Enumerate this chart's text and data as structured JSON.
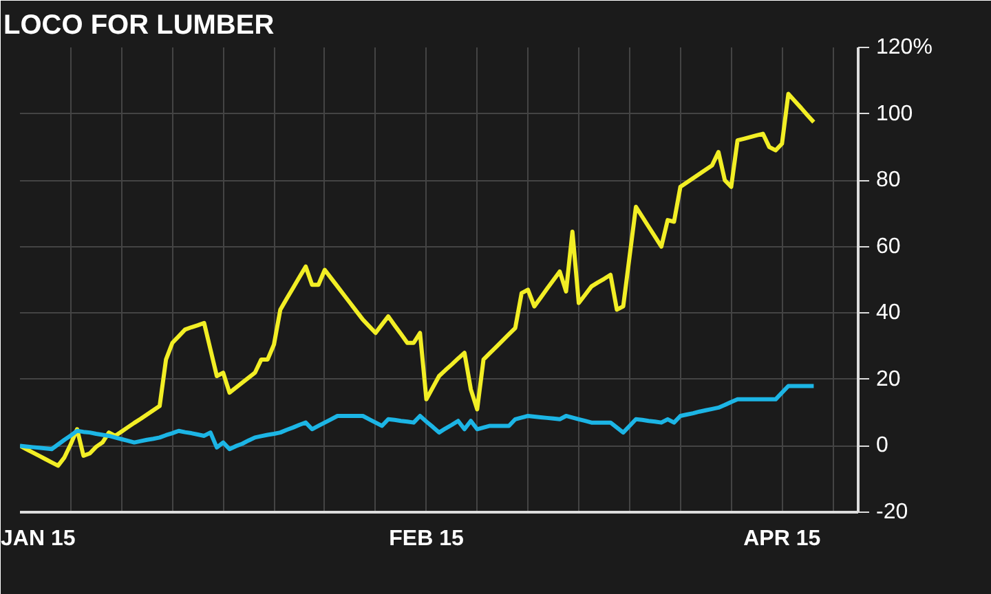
{
  "chart_data": {
    "type": "line",
    "title": "LOCO FOR LUMBER",
    "categories": [
      "JAN 15",
      null,
      null,
      null,
      null,
      null,
      null,
      null,
      null,
      null,
      null,
      null,
      null,
      null,
      null,
      null,
      null,
      null,
      null,
      null,
      null,
      null,
      null,
      null,
      null,
      null,
      null,
      null,
      null,
      null,
      null,
      null,
      null,
      null,
      null,
      null,
      null,
      null,
      null,
      null,
      null,
      null,
      null,
      null,
      null,
      null,
      null,
      null,
      null,
      null,
      null,
      null,
      null,
      null,
      null,
      null,
      null,
      null,
      null,
      null,
      null,
      null,
      null,
      null,
      "FEB 15",
      null,
      null,
      null,
      null,
      null,
      null,
      null,
      null,
      null,
      null,
      null,
      null,
      null,
      null,
      null,
      null,
      null,
      null,
      null,
      null,
      null,
      null,
      null,
      null,
      null,
      null,
      null,
      null,
      null,
      null,
      null,
      null,
      null,
      null,
      null,
      null,
      null,
      null,
      null,
      null,
      null,
      null,
      null,
      null,
      null,
      null,
      null,
      null,
      null,
      null,
      null,
      null,
      null,
      null,
      null,
      "APR 15",
      null,
      null,
      null,
      null,
      null,
      null,
      null,
      null,
      null,
      null,
      null,
      null
    ],
    "ylim": [
      -20,
      120
    ],
    "yticks": [
      -20,
      0,
      20,
      40,
      60,
      80,
      100,
      {
        "value": 120,
        "label": "120%"
      }
    ],
    "grid": true,
    "marker": "none",
    "line_style": "solid",
    "series": [
      {
        "color": "#f2ee25",
        "values": [
          0,
          -1,
          -2,
          -3,
          -4,
          -5,
          -6,
          -3.5,
          0.5,
          5,
          -3,
          -2.3,
          -0.3,
          1,
          4,
          3,
          4.3,
          5.6,
          6.9,
          8.1,
          9.4,
          10.7,
          12,
          26,
          31,
          33,
          35,
          35.7,
          36.3,
          37,
          29,
          21,
          22,
          16,
          17.5,
          19,
          20.5,
          22,
          26,
          26,
          30.5,
          41,
          44.3,
          47.5,
          50.8,
          54,
          48.5,
          48.5,
          53,
          50.5,
          48,
          45.5,
          43,
          40.5,
          38,
          36,
          34,
          36.5,
          39,
          36.3,
          33.7,
          31,
          31,
          34,
          14,
          17.5,
          21,
          22.8,
          24.5,
          26.3,
          28,
          17,
          11,
          26,
          27.9,
          29.8,
          31.7,
          33.6,
          35.5,
          46,
          47,
          42,
          44.6,
          47.3,
          49.9,
          52.5,
          46.5,
          64.5,
          43,
          45.5,
          48,
          49.2,
          50.3,
          51.5,
          41,
          42,
          57,
          72,
          69,
          66,
          63,
          60,
          68,
          67.5,
          78,
          79.3,
          80.6,
          81.9,
          83.2,
          84.5,
          88.5,
          80,
          78,
          92,
          92.5,
          93,
          93.5,
          94,
          90,
          89,
          91,
          106,
          103.9,
          101.8,
          99.6,
          97.5,
          null,
          null,
          null,
          null,
          null,
          null,
          null
        ]
      },
      {
        "color": "#1cb5e5",
        "values": [
          0,
          -0.2,
          -0.4,
          -0.6,
          -0.8,
          -1,
          0.4,
          1.8,
          3.1,
          4.5,
          4.2,
          4,
          3.6,
          3.3,
          3,
          2.5,
          2,
          1.5,
          1,
          1.4,
          1.8,
          2.1,
          2.5,
          3.2,
          3.8,
          4.5,
          4.1,
          3.8,
          3.4,
          3,
          4,
          -0.5,
          1,
          -1,
          -0.1,
          0.6,
          1.6,
          2.5,
          2.9,
          3.3,
          3.6,
          4,
          4.8,
          5.5,
          6.3,
          7,
          5,
          6,
          7,
          8,
          9,
          9,
          9,
          9,
          9,
          8,
          7,
          6,
          8,
          7.8,
          7.5,
          7.3,
          7,
          9,
          7.3,
          5.7,
          4,
          5.2,
          6.3,
          7.5,
          5,
          7.5,
          5,
          5.5,
          6,
          6,
          6,
          6,
          8,
          8.5,
          9,
          8.8,
          8.6,
          8.4,
          8.2,
          8,
          9,
          8.5,
          8,
          7.5,
          7,
          7,
          7,
          7,
          5.5,
          4,
          6,
          8,
          7.8,
          7.5,
          7.3,
          7,
          8,
          7,
          9,
          9.4,
          9.8,
          10.3,
          10.7,
          11.1,
          11.5,
          12.3,
          13.2,
          14,
          14,
          14,
          14,
          14,
          14,
          14,
          16,
          18,
          18,
          18,
          18,
          18,
          null,
          null,
          null,
          null,
          null,
          null,
          null
        ]
      }
    ]
  }
}
